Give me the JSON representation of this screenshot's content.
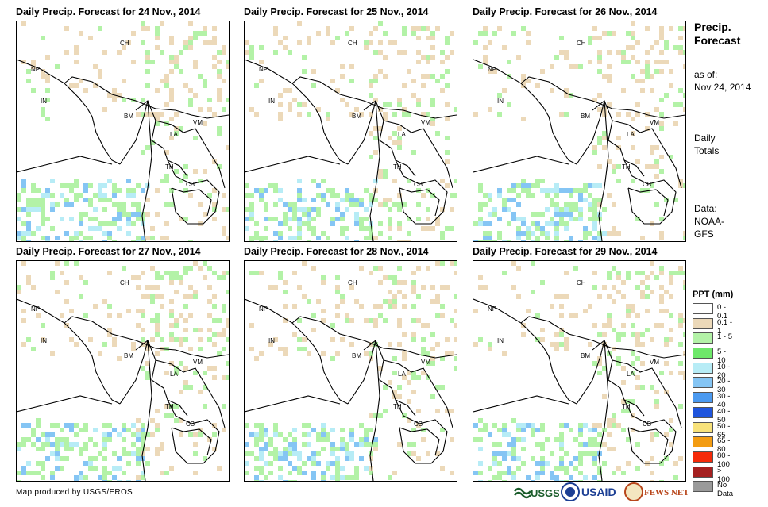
{
  "panels": [
    {
      "title": "Daily Precip. Forecast for 24 Nov., 2014"
    },
    {
      "title": "Daily Precip. Forecast for 25 Nov., 2014"
    },
    {
      "title": "Daily Precip. Forecast for 26 Nov., 2014"
    },
    {
      "title": "Daily Precip. Forecast for 27 Nov., 2014"
    },
    {
      "title": "Daily Precip. Forecast for 28 Nov., 2014"
    },
    {
      "title": "Daily Precip. Forecast for 29 Nov., 2014"
    }
  ],
  "country_labels": {
    "ch": "CH",
    "np": "NP",
    "in": "IN",
    "bm": "BM",
    "vm": "VM",
    "la": "LA",
    "th": "TH",
    "cb": "CB"
  },
  "side": {
    "title_line1": "Precip.",
    "title_line2": "Forecast",
    "asof_label": "as of:",
    "asof_date": "Nov 24, 2014",
    "totals_line1": "Daily",
    "totals_line2": "Totals",
    "data_line1": "Data:",
    "data_line2": "NOAA-",
    "data_line3": "GFS"
  },
  "legend": {
    "title": "PPT (mm)",
    "items": [
      {
        "label": "0 - 0.1",
        "color": "#ffffff"
      },
      {
        "label": "0.1 - 1",
        "color": "#ecd9b9"
      },
      {
        "label": "1 - 5",
        "color": "#b3f2a7"
      },
      {
        "label": "5 - 10",
        "color": "#6ee86a"
      },
      {
        "label": "10 - 20",
        "color": "#b7ecf6"
      },
      {
        "label": "20 - 30",
        "color": "#85c5f4"
      },
      {
        "label": "30 - 40",
        "color": "#4b9af0"
      },
      {
        "label": "40 - 50",
        "color": "#1f55dd"
      },
      {
        "label": "50 - 65",
        "color": "#f8e27a"
      },
      {
        "label": "65 - 80",
        "color": "#f39c12"
      },
      {
        "label": "80 - 100",
        "color": "#f52b0a"
      },
      {
        "label": "> 100",
        "color": "#a52020"
      },
      {
        "label": "No Data",
        "color": "#9a9a9a"
      }
    ]
  },
  "credit": "Map produced by USGS/EROS",
  "logos": {
    "usgs": "USGS",
    "usaid": "USAID",
    "fewsnet": "FEWS NET"
  }
}
